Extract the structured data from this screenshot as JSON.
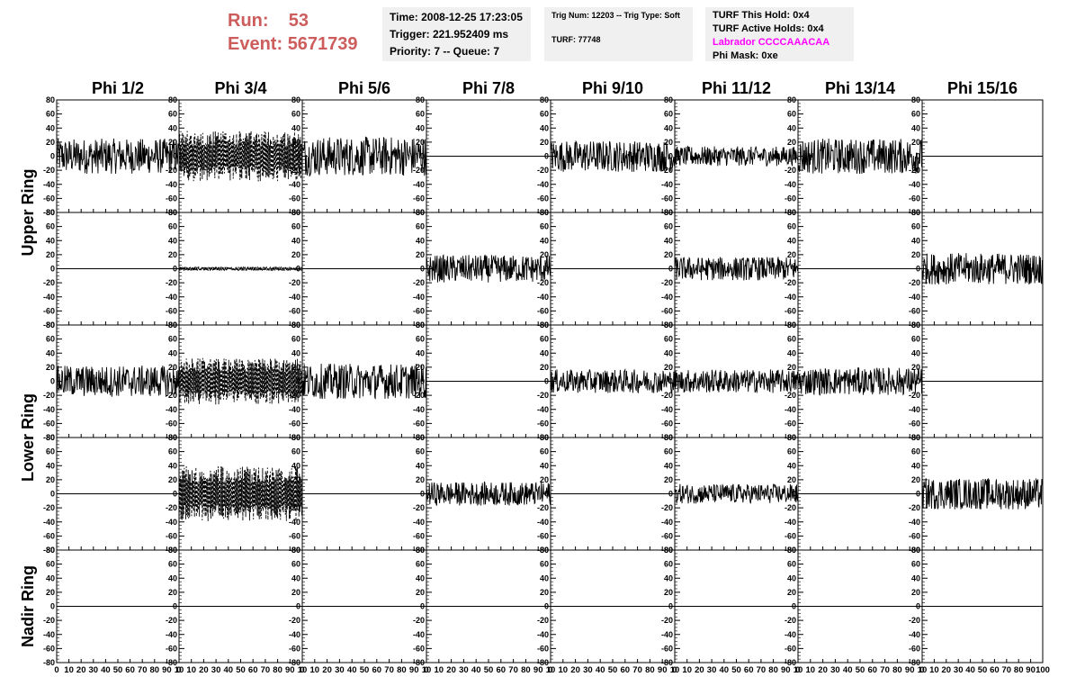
{
  "header": {
    "run_label": "Run:",
    "run_value": "53",
    "event_label": "Event:",
    "event_value": "5671739",
    "time": "Time: 2008-12-25 17:23:05",
    "trigger": "Trigger: 221.952409 ms",
    "priority": "Priority: 7 -- Queue: 7",
    "trig_info": "Trig Num: 12203 -- Trig Type: Soft",
    "turf": "TURF: 77748",
    "turf_this_hold": "TURF This Hold: 0x4",
    "turf_active_holds": "TURF Active Holds: 0x4",
    "labrador": "Labrador CCCCAAACAA",
    "phi_mask": "Phi Mask: 0xe"
  },
  "chart_data": {
    "type": "line",
    "columns": [
      "Phi 1/2",
      "Phi 3/4",
      "Phi 5/6",
      "Phi 7/8",
      "Phi 9/10",
      "Phi 11/12",
      "Phi 13/14",
      "Phi 15/16"
    ],
    "ring_labels": [
      "Upper Ring",
      "Lower Ring",
      "Nadir Ring"
    ],
    "ring_rows": [
      [
        0,
        1
      ],
      [
        2,
        3
      ],
      [
        4
      ]
    ],
    "ylim": [
      -80,
      80
    ],
    "y_ticks": [
      -80,
      -60,
      -40,
      -20,
      0,
      20,
      40,
      60,
      80
    ],
    "xlim": [
      0,
      100
    ],
    "x_ticks": [
      0,
      10,
      20,
      30,
      40,
      50,
      60,
      70,
      80,
      90,
      100
    ],
    "x_tick_labels_first": [
      "0",
      "10",
      "20",
      "30",
      "40",
      "50",
      "60",
      "70",
      "80",
      "90",
      "10"
    ],
    "x_tick_labels_mid": [
      "0",
      "10",
      "20",
      "30",
      "40",
      "50",
      "60",
      "70",
      "80",
      "90",
      "10"
    ],
    "x_tick_labels_last": [
      "0",
      "10",
      "20",
      "30",
      "40",
      "50",
      "60",
      "70",
      "80",
      "90",
      "100"
    ],
    "samples_per_trace": 256,
    "colors": {
      "trace": "#000000",
      "axis": "#000000"
    },
    "panels": [
      {
        "row": 0,
        "col": 0,
        "amplitude": 18,
        "style": "solid",
        "signal": true
      },
      {
        "row": 0,
        "col": 1,
        "amplitude": 24,
        "style": "dashed",
        "signal": true
      },
      {
        "row": 0,
        "col": 2,
        "amplitude": 20,
        "style": "solid",
        "signal": true
      },
      {
        "row": 0,
        "col": 3,
        "amplitude": 0,
        "style": "solid",
        "signal": false
      },
      {
        "row": 0,
        "col": 4,
        "amplitude": 16,
        "style": "solid",
        "signal": true
      },
      {
        "row": 0,
        "col": 5,
        "amplitude": 10,
        "style": "solid",
        "signal": true
      },
      {
        "row": 0,
        "col": 6,
        "amplitude": 18,
        "style": "solid",
        "signal": true
      },
      {
        "row": 0,
        "col": 7,
        "amplitude": 0,
        "style": "solid",
        "signal": false
      },
      {
        "row": 1,
        "col": 0,
        "amplitude": 0,
        "style": "solid",
        "signal": false
      },
      {
        "row": 1,
        "col": 1,
        "amplitude": 2,
        "style": "dashed",
        "signal": true
      },
      {
        "row": 1,
        "col": 2,
        "amplitude": 0,
        "style": "solid",
        "signal": false
      },
      {
        "row": 1,
        "col": 3,
        "amplitude": 14,
        "style": "solid",
        "signal": true
      },
      {
        "row": 1,
        "col": 4,
        "amplitude": 0,
        "style": "solid",
        "signal": false
      },
      {
        "row": 1,
        "col": 5,
        "amplitude": 12,
        "style": "solid",
        "signal": true
      },
      {
        "row": 1,
        "col": 6,
        "amplitude": 0,
        "style": "solid",
        "signal": false
      },
      {
        "row": 1,
        "col": 7,
        "amplitude": 16,
        "style": "solid",
        "signal": true
      },
      {
        "row": 2,
        "col": 0,
        "amplitude": 16,
        "style": "solid",
        "signal": true
      },
      {
        "row": 2,
        "col": 1,
        "amplitude": 22,
        "style": "dashed",
        "signal": true
      },
      {
        "row": 2,
        "col": 2,
        "amplitude": 18,
        "style": "solid",
        "signal": true
      },
      {
        "row": 2,
        "col": 3,
        "amplitude": 0,
        "style": "solid",
        "signal": false
      },
      {
        "row": 2,
        "col": 4,
        "amplitude": 12,
        "style": "solid",
        "signal": true
      },
      {
        "row": 2,
        "col": 5,
        "amplitude": 12,
        "style": "solid",
        "signal": true
      },
      {
        "row": 2,
        "col": 6,
        "amplitude": 14,
        "style": "solid",
        "signal": true
      },
      {
        "row": 2,
        "col": 7,
        "amplitude": 0,
        "style": "solid",
        "signal": false
      },
      {
        "row": 3,
        "col": 0,
        "amplitude": 0,
        "style": "solid",
        "signal": false
      },
      {
        "row": 3,
        "col": 1,
        "amplitude": 26,
        "style": "dashed",
        "signal": true
      },
      {
        "row": 3,
        "col": 2,
        "amplitude": 0,
        "style": "solid",
        "signal": false
      },
      {
        "row": 3,
        "col": 3,
        "amplitude": 12,
        "style": "solid",
        "signal": true
      },
      {
        "row": 3,
        "col": 4,
        "amplitude": 0,
        "style": "solid",
        "signal": false
      },
      {
        "row": 3,
        "col": 5,
        "amplitude": 10,
        "style": "solid",
        "signal": true
      },
      {
        "row": 3,
        "col": 6,
        "amplitude": 0,
        "style": "solid",
        "signal": false
      },
      {
        "row": 3,
        "col": 7,
        "amplitude": 16,
        "style": "solid",
        "signal": true
      },
      {
        "row": 4,
        "col": 0,
        "amplitude": 0,
        "style": "solid",
        "signal": false
      },
      {
        "row": 4,
        "col": 1,
        "amplitude": 0,
        "style": "solid",
        "signal": false
      },
      {
        "row": 4,
        "col": 2,
        "amplitude": 0,
        "style": "solid",
        "signal": false
      },
      {
        "row": 4,
        "col": 3,
        "amplitude": 0,
        "style": "solid",
        "signal": false
      },
      {
        "row": 4,
        "col": 4,
        "amplitude": 0,
        "style": "solid",
        "signal": false
      },
      {
        "row": 4,
        "col": 5,
        "amplitude": 0,
        "style": "solid",
        "signal": false
      },
      {
        "row": 4,
        "col": 6,
        "amplitude": 0,
        "style": "solid",
        "signal": false
      },
      {
        "row": 4,
        "col": 7,
        "amplitude": 0,
        "style": "solid",
        "signal": false
      }
    ]
  }
}
